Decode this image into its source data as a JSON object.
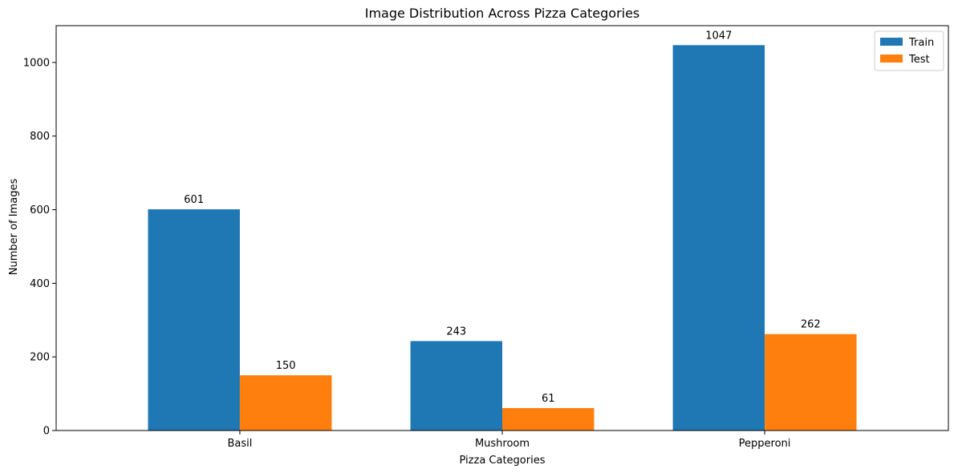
{
  "chart_data": {
    "type": "bar",
    "title": "Image Distribution Across Pizza Categories",
    "xlabel": "Pizza Categories",
    "ylabel": "Number of Images",
    "categories": [
      "Basil",
      "Mushroom",
      "Pepperoni"
    ],
    "series": [
      {
        "name": "Train",
        "values": [
          601,
          243,
          1047
        ],
        "color": "#1f77b4"
      },
      {
        "name": "Test",
        "values": [
          150,
          61,
          262
        ],
        "color": "#ff7f0e"
      }
    ],
    "ylim": [
      0,
      1100
    ],
    "yticks": [
      0,
      200,
      400,
      600,
      800,
      1000
    ],
    "grid": false,
    "legend_position": "top-right"
  }
}
